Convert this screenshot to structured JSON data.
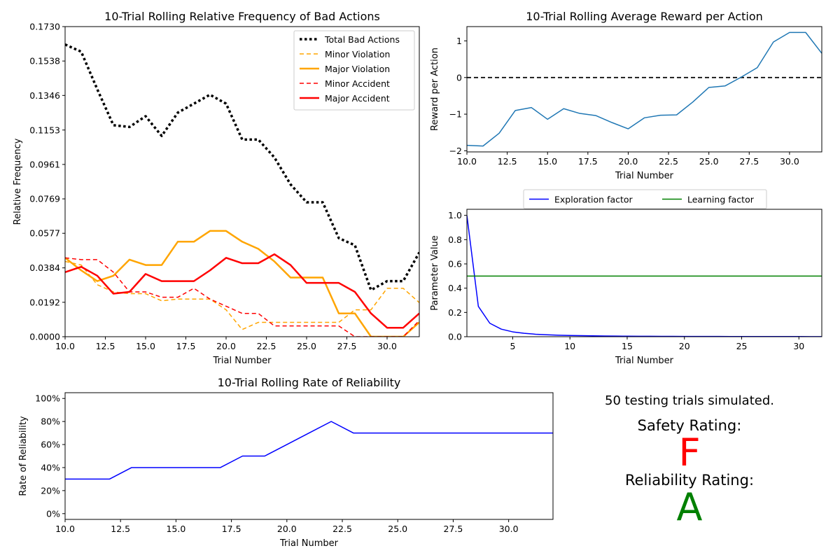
{
  "chart_data": [
    {
      "id": "bad_actions",
      "type": "line",
      "title": "10-Trial Rolling Relative Frequency of Bad Actions",
      "xlabel": "Trial Number",
      "ylabel": "Relative Frequency",
      "xlim": [
        10,
        32
      ],
      "ylim": [
        0,
        0.173
      ],
      "xticks": [
        10,
        12.5,
        15,
        17.5,
        20,
        22.5,
        25,
        27.5,
        30
      ],
      "xtick_labels": [
        "10.0",
        "12.5",
        "15.0",
        "17.5",
        "20.0",
        "22.5",
        "25.0",
        "27.5",
        "30.0"
      ],
      "yticks": [
        0,
        0.0192,
        0.0384,
        0.0577,
        0.0769,
        0.0961,
        0.1153,
        0.1346,
        0.1538,
        0.173
      ],
      "ytick_labels": [
        "0.0000",
        "0.0192",
        "0.0384",
        "0.0577",
        "0.0769",
        "0.0961",
        "0.1153",
        "0.1346",
        "0.1538",
        "0.1730"
      ],
      "grid": false,
      "legend": "top-right",
      "x": [
        10,
        11,
        12,
        13,
        14,
        15,
        16,
        17,
        18,
        19,
        20,
        21,
        22,
        23,
        24,
        25,
        26,
        27,
        28,
        29,
        30,
        31,
        32
      ],
      "series": [
        {
          "name": "Total Bad Actions",
          "color": "#000000",
          "style": "dotted",
          "width": 3.5,
          "values": [
            0.163,
            0.159,
            0.138,
            0.118,
            0.117,
            0.123,
            0.112,
            0.125,
            0.13,
            0.135,
            0.13,
            0.11,
            0.11,
            0.1,
            0.085,
            0.075,
            0.075,
            0.055,
            0.051,
            0.026,
            0.031,
            0.031,
            0.047
          ]
        },
        {
          "name": "Minor Violation",
          "color": "#ffa500",
          "style": "dashed",
          "width": 1.5,
          "values": [
            0.042,
            0.04,
            0.029,
            0.025,
            0.024,
            0.024,
            0.02,
            0.021,
            0.021,
            0.021,
            0.015,
            0.004,
            0.008,
            0.008,
            0.008,
            0.008,
            0.008,
            0.008,
            0.015,
            0.015,
            0.027,
            0.027,
            0.019
          ]
        },
        {
          "name": "Major Violation",
          "color": "#ffa500",
          "style": "solid",
          "width": 2.5,
          "values": [
            0.044,
            0.037,
            0.031,
            0.034,
            0.043,
            0.04,
            0.04,
            0.053,
            0.053,
            0.059,
            0.059,
            0.053,
            0.049,
            0.042,
            0.033,
            0.033,
            0.033,
            0.013,
            0.013,
            0.0,
            0.0,
            0.0,
            0.008
          ]
        },
        {
          "name": "Minor Accident",
          "color": "#ff0000",
          "style": "dashed",
          "width": 1.5,
          "values": [
            0.044,
            0.043,
            0.043,
            0.036,
            0.025,
            0.025,
            0.022,
            0.022,
            0.027,
            0.021,
            0.017,
            0.013,
            0.013,
            0.006,
            0.006,
            0.006,
            0.006,
            0.006,
            0.0,
            0.0,
            0.0,
            0.0,
            0.009
          ]
        },
        {
          "name": "Major Accident",
          "color": "#ff0000",
          "style": "solid",
          "width": 2.5,
          "values": [
            0.036,
            0.039,
            0.034,
            0.024,
            0.025,
            0.035,
            0.031,
            0.031,
            0.031,
            0.037,
            0.044,
            0.041,
            0.041,
            0.046,
            0.04,
            0.03,
            0.03,
            0.03,
            0.025,
            0.013,
            0.005,
            0.005,
            0.013
          ]
        }
      ]
    },
    {
      "id": "reward",
      "type": "line",
      "title": "10-Trial Rolling Average Reward per Action",
      "xlabel": "Trial Number",
      "ylabel": "Reward per Action",
      "xlim": [
        10,
        32
      ],
      "ylim": [
        -2.03,
        1.39
      ],
      "xticks": [
        10,
        12.5,
        15,
        17.5,
        20,
        22.5,
        25,
        27.5,
        30
      ],
      "xtick_labels": [
        "10.0",
        "12.5",
        "15.0",
        "17.5",
        "20.0",
        "22.5",
        "25.0",
        "27.5",
        "30.0"
      ],
      "yticks": [
        -2,
        -1,
        0,
        1
      ],
      "ytick_labels": [
        "−2",
        "−1",
        "0",
        "1"
      ],
      "grid": false,
      "reference_line": {
        "y": 0,
        "color": "#000000",
        "style": "dashed"
      },
      "x": [
        10,
        11,
        12,
        13,
        14,
        15,
        16,
        17,
        18,
        19,
        20,
        21,
        22,
        23,
        24,
        25,
        26,
        27,
        28,
        29,
        30,
        31,
        32
      ],
      "series": [
        {
          "name": "",
          "color": "#1f77b4",
          "style": "solid",
          "width": 1.5,
          "values": [
            -1.85,
            -1.87,
            -1.52,
            -0.9,
            -0.82,
            -1.14,
            -0.85,
            -0.98,
            -1.04,
            -1.23,
            -1.4,
            -1.1,
            -1.03,
            -1.02,
            -0.67,
            -0.27,
            -0.23,
            0.01,
            0.27,
            0.97,
            1.23,
            1.23,
            0.66
          ]
        }
      ]
    },
    {
      "id": "parameters",
      "type": "line",
      "title": "",
      "xlabel": "Trial Number",
      "ylabel": "Parameter Value",
      "xlim": [
        1,
        32
      ],
      "ylim": [
        0,
        1.05
      ],
      "xticks": [
        5,
        10,
        15,
        20,
        25,
        30
      ],
      "xtick_labels": [
        "5",
        "10",
        "15",
        "20",
        "25",
        "30"
      ],
      "yticks": [
        0,
        0.2,
        0.4,
        0.6,
        0.8,
        1.0
      ],
      "ytick_labels": [
        "0.0",
        "0.2",
        "0.4",
        "0.6",
        "0.8",
        "1.0"
      ],
      "grid": false,
      "legend": "top-center",
      "x": [
        1,
        2,
        3,
        4,
        5,
        6,
        7,
        8,
        9,
        10,
        11,
        12,
        13,
        14,
        15,
        16,
        17,
        18,
        19,
        20,
        21,
        22,
        23,
        24,
        25,
        26,
        27,
        28,
        29,
        30,
        31,
        32
      ],
      "series": [
        {
          "name": "Exploration factor",
          "color": "#0000ff",
          "style": "solid",
          "width": 1.5,
          "values": [
            1.0,
            0.25,
            0.111,
            0.0625,
            0.04,
            0.0278,
            0.0204,
            0.0156,
            0.0123,
            0.01,
            0.0083,
            0.0069,
            0.0059,
            0.0051,
            0.0044,
            0.0039,
            0.0035,
            0.0031,
            0.0028,
            0.0025,
            0.0023,
            0.0021,
            0.0019,
            0.0017,
            0.0016,
            0.0015,
            0.0014,
            0.0013,
            0.0012,
            0.0011,
            0.001,
            0.001
          ]
        },
        {
          "name": "Learning factor",
          "color": "#008000",
          "style": "solid",
          "width": 1.5,
          "values": [
            0.5,
            0.5,
            0.5,
            0.5,
            0.5,
            0.5,
            0.5,
            0.5,
            0.5,
            0.5,
            0.5,
            0.5,
            0.5,
            0.5,
            0.5,
            0.5,
            0.5,
            0.5,
            0.5,
            0.5,
            0.5,
            0.5,
            0.5,
            0.5,
            0.5,
            0.5,
            0.5,
            0.5,
            0.5,
            0.5,
            0.5,
            0.5
          ]
        }
      ]
    },
    {
      "id": "reliability",
      "type": "line",
      "title": "10-Trial Rolling Rate of Reliability",
      "xlabel": "Trial Number",
      "ylabel": "Rate of Reliability",
      "xlim": [
        10,
        32
      ],
      "ylim": [
        -0.05,
        1.05
      ],
      "xticks": [
        10,
        12.5,
        15,
        17.5,
        20,
        22.5,
        25,
        27.5,
        30
      ],
      "xtick_labels": [
        "10.0",
        "12.5",
        "15.0",
        "17.5",
        "20.0",
        "22.5",
        "25.0",
        "27.5",
        "30.0"
      ],
      "yticks": [
        0,
        0.2,
        0.4,
        0.6,
        0.8,
        1.0
      ],
      "ytick_labels": [
        "0%",
        "20%",
        "40%",
        "60%",
        "80%",
        "100%"
      ],
      "grid": false,
      "x": [
        10,
        11,
        12,
        13,
        14,
        15,
        16,
        17,
        18,
        19,
        20,
        21,
        22,
        23,
        24,
        25,
        26,
        27,
        28,
        29,
        30,
        31,
        32
      ],
      "series": [
        {
          "name": "",
          "color": "#0000ff",
          "style": "solid",
          "width": 1.5,
          "values": [
            0.3,
            0.3,
            0.3,
            0.4,
            0.4,
            0.4,
            0.4,
            0.4,
            0.5,
            0.5,
            0.6,
            0.7,
            0.8,
            0.7,
            0.7,
            0.7,
            0.7,
            0.7,
            0.7,
            0.7,
            0.7,
            0.7,
            0.7
          ]
        }
      ]
    }
  ],
  "summary": {
    "trials_text": "50 testing trials simulated.",
    "safety_label": "Safety Rating:",
    "safety_grade": "F",
    "safety_color": "#ff0000",
    "reliability_label": "Reliability Rating:",
    "reliability_grade": "A",
    "reliability_color": "#008000"
  }
}
